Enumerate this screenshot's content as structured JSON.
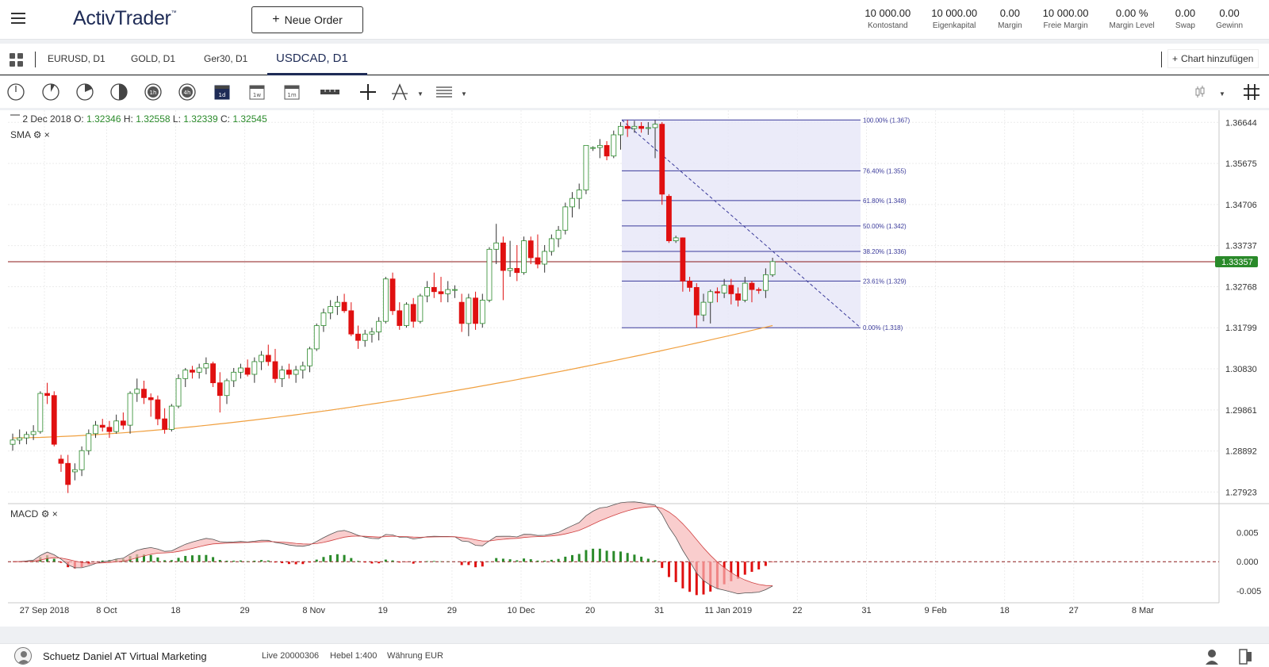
{
  "header": {
    "logo": "ActivTrader",
    "logo_tm": "™",
    "new_order_label": "Neue Order",
    "stats": [
      {
        "value": "10 000.00",
        "label": "Kontostand"
      },
      {
        "value": "10 000.00",
        "label": "Eigenkapital"
      },
      {
        "value": "0.00",
        "label": "Margin"
      },
      {
        "value": "10 000.00",
        "label": "Freie Margin"
      },
      {
        "value": "0.00 %",
        "label": "Margin Level"
      },
      {
        "value": "0.00",
        "label": "Swap"
      },
      {
        "value": "0.00",
        "label": "Gewinn"
      }
    ]
  },
  "tabs": {
    "items": [
      {
        "label": "EURUSD, D1"
      },
      {
        "label": "GOLD, D1"
      },
      {
        "label": "Ger30, D1"
      },
      {
        "label": "USDCAD, D1"
      }
    ],
    "add_chart_label": "Chart hinzufügen"
  },
  "toolbar": {
    "icons": [
      "clock-icon",
      "timeframe-15-icon",
      "timeframe-30-icon",
      "timeframe-half-icon",
      "timeframe-1h-icon",
      "timeframe-4h-icon",
      "calendar-1d-icon",
      "calendar-1w-icon",
      "calendar-1m-icon",
      "ruler-icon",
      "crosshair-icon",
      "drawing-tool-icon",
      "fibonacci-lines-icon"
    ],
    "right_icons": [
      "candle-type-icon",
      "grid-icon"
    ]
  },
  "chart": {
    "ohlc": {
      "date": "2 Dec 2018",
      "open_label": "O:",
      "open": "1.32346",
      "high_label": "H:",
      "high": "1.32558",
      "low_label": "L:",
      "low": "1.32339",
      "close_label": "C:",
      "close": "1.32545"
    },
    "sma_label": "SMA",
    "macd_label": "MACD",
    "current_price": "1.33357",
    "colors": {
      "up": "#2a8a2a",
      "down": "#e01010",
      "sma": "#f0a040",
      "price_line": "#8b1a1a",
      "fib": "#3a3a9a",
      "fib_fill": "#e8e8f8"
    }
  },
  "chart_data": {
    "type": "candlestick",
    "symbol": "USDCAD",
    "timeframe": "D1",
    "y_ticks": [
      "1.36644",
      "1.35675",
      "1.34706",
      "1.33737",
      "1.32768",
      "1.31799",
      "1.30830",
      "1.29861",
      "1.28892",
      "1.27923"
    ],
    "x_ticks": [
      "27 Sep 2018",
      "8 Oct",
      "18",
      "29",
      "8 Nov",
      "19",
      "29",
      "10 Dec",
      "20",
      "31",
      "11 Jan 2019",
      "22",
      "31",
      "9 Feb",
      "18",
      "27",
      "8 Mar"
    ],
    "ylim": [
      1.2765,
      1.3693
    ],
    "fibonacci": [
      {
        "level": "100.00% (1.367)",
        "price": 1.367
      },
      {
        "level": "76.40% (1.355)",
        "price": 1.355
      },
      {
        "level": "61.80% (1.348)",
        "price": 1.348
      },
      {
        "level": "50.00% (1.342)",
        "price": 1.342
      },
      {
        "level": "38.20% (1.336)",
        "price": 1.336
      },
      {
        "level": "23.61% (1.329)",
        "price": 1.329
      },
      {
        "level": "0.00% (1.318)",
        "price": 1.318
      }
    ],
    "macd_ticks": [
      "0.005",
      "0.000",
      "-0.005"
    ],
    "macd_ylim": [
      -0.0068,
      0.0096
    ],
    "candles": [
      [
        1.2905,
        1.293,
        1.289,
        1.2915
      ],
      [
        1.2915,
        1.294,
        1.2905,
        1.292
      ],
      [
        1.292,
        1.2935,
        1.2905,
        1.2928
      ],
      [
        1.2928,
        1.295,
        1.2915,
        1.2935
      ],
      [
        1.2935,
        1.303,
        1.293,
        1.3025
      ],
      [
        1.3025,
        1.305,
        1.3,
        1.302
      ],
      [
        1.302,
        1.303,
        1.29,
        1.2905
      ],
      [
        1.287,
        1.288,
        1.284,
        1.286
      ],
      [
        1.286,
        1.288,
        1.279,
        1.281
      ],
      [
        1.284,
        1.286,
        1.282,
        1.2845
      ],
      [
        1.2845,
        1.29,
        1.283,
        1.289
      ],
      [
        1.289,
        1.294,
        1.288,
        1.293
      ],
      [
        1.293,
        1.296,
        1.292,
        1.295
      ],
      [
        1.295,
        1.2965,
        1.2935,
        1.2945
      ],
      [
        1.2945,
        1.296,
        1.292,
        1.2935
      ],
      [
        1.2935,
        1.2975,
        1.293,
        1.296
      ],
      [
        1.296,
        1.298,
        1.294,
        1.295
      ],
      [
        1.295,
        1.303,
        1.293,
        1.3025
      ],
      [
        1.3025,
        1.306,
        1.3005,
        1.3035
      ],
      [
        1.3035,
        1.3055,
        1.3,
        1.3015
      ],
      [
        1.3015,
        1.3025,
        1.297,
        1.301
      ],
      [
        1.301,
        1.302,
        1.295,
        1.2965
      ],
      [
        1.2965,
        1.299,
        1.293,
        1.294
      ],
      [
        1.294,
        1.3,
        1.2935,
        1.2995
      ],
      [
        1.2995,
        1.307,
        1.299,
        1.306
      ],
      [
        1.306,
        1.3085,
        1.304,
        1.308
      ],
      [
        1.308,
        1.309,
        1.306,
        1.3075
      ],
      [
        1.3075,
        1.3095,
        1.306,
        1.3085
      ],
      [
        1.3085,
        1.311,
        1.307,
        1.3095
      ],
      [
        1.3095,
        1.31,
        1.304,
        1.305
      ],
      [
        1.305,
        1.3075,
        1.298,
        1.302
      ],
      [
        1.302,
        1.306,
        1.3,
        1.3055
      ],
      [
        1.3055,
        1.3085,
        1.304,
        1.3075
      ],
      [
        1.3075,
        1.3095,
        1.306,
        1.3085
      ],
      [
        1.3085,
        1.3105,
        1.3065,
        1.307
      ],
      [
        1.307,
        1.311,
        1.305,
        1.31
      ],
      [
        1.31,
        1.3125,
        1.308,
        1.3115
      ],
      [
        1.3115,
        1.314,
        1.309,
        1.31
      ],
      [
        1.31,
        1.313,
        1.305,
        1.306
      ],
      [
        1.306,
        1.309,
        1.304,
        1.308
      ],
      [
        1.308,
        1.3095,
        1.306,
        1.307
      ],
      [
        1.307,
        1.309,
        1.305,
        1.308
      ],
      [
        1.308,
        1.31,
        1.306,
        1.309
      ],
      [
        1.309,
        1.3135,
        1.3075,
        1.313
      ],
      [
        1.313,
        1.319,
        1.3125,
        1.3185
      ],
      [
        1.3185,
        1.3225,
        1.317,
        1.3215
      ],
      [
        1.3215,
        1.3245,
        1.32,
        1.323
      ],
      [
        1.323,
        1.3255,
        1.321,
        1.324
      ],
      [
        1.324,
        1.326,
        1.3215,
        1.322
      ],
      [
        1.322,
        1.324,
        1.316,
        1.3165
      ],
      [
        1.3165,
        1.3185,
        1.313,
        1.315
      ],
      [
        1.315,
        1.3175,
        1.3135,
        1.3165
      ],
      [
        1.3165,
        1.318,
        1.3145,
        1.317
      ],
      [
        1.317,
        1.3205,
        1.315,
        1.3195
      ],
      [
        1.3195,
        1.33,
        1.319,
        1.3295
      ],
      [
        1.3295,
        1.331,
        1.321,
        1.322
      ],
      [
        1.322,
        1.324,
        1.3175,
        1.3185
      ],
      [
        1.3185,
        1.324,
        1.318,
        1.3235
      ],
      [
        1.3235,
        1.325,
        1.318,
        1.3195
      ],
      [
        1.3195,
        1.326,
        1.319,
        1.3255
      ],
      [
        1.3255,
        1.329,
        1.324,
        1.3275
      ],
      [
        1.3275,
        1.331,
        1.325,
        1.3265
      ],
      [
        1.3265,
        1.33,
        1.324,
        1.326
      ],
      [
        1.326,
        1.329,
        1.324,
        1.327
      ],
      [
        1.327,
        1.328,
        1.325,
        1.327
      ],
      [
        1.324,
        1.326,
        1.317,
        1.319
      ],
      [
        1.319,
        1.326,
        1.316,
        1.325
      ],
      [
        1.325,
        1.3265,
        1.3175,
        1.319
      ],
      [
        1.319,
        1.326,
        1.318,
        1.3245
      ],
      [
        1.3245,
        1.337,
        1.324,
        1.3365
      ],
      [
        1.3365,
        1.3425,
        1.333,
        1.338
      ],
      [
        1.338,
        1.3395,
        1.3245,
        1.3315
      ],
      [
        1.3315,
        1.3385,
        1.33,
        1.332
      ],
      [
        1.332,
        1.3375,
        1.329,
        1.331
      ],
      [
        1.331,
        1.3395,
        1.3305,
        1.3385
      ],
      [
        1.3385,
        1.3395,
        1.333,
        1.3345
      ],
      [
        1.3345,
        1.34,
        1.332,
        1.333
      ],
      [
        1.333,
        1.3375,
        1.331,
        1.336
      ],
      [
        1.336,
        1.34,
        1.335,
        1.339
      ],
      [
        1.339,
        1.342,
        1.337,
        1.341
      ],
      [
        1.341,
        1.3475,
        1.34,
        1.3465
      ],
      [
        1.3465,
        1.35,
        1.344,
        1.3485
      ],
      [
        1.3485,
        1.352,
        1.346,
        1.3505
      ],
      [
        1.3505,
        1.361,
        1.3495,
        1.361
      ],
      [
        1.3603,
        1.3608,
        1.3597,
        1.3605
      ],
      [
        1.3605,
        1.3625,
        1.358,
        1.361
      ],
      [
        1.361,
        1.362,
        1.3575,
        1.3585
      ],
      [
        1.3585,
        1.3645,
        1.358,
        1.3635
      ],
      [
        1.3635,
        1.3665,
        1.36,
        1.3655
      ],
      [
        1.3655,
        1.367,
        1.363,
        1.365
      ],
      [
        1.365,
        1.3668,
        1.364,
        1.3655
      ],
      [
        1.3655,
        1.3665,
        1.364,
        1.365
      ],
      [
        1.365,
        1.3665,
        1.3635,
        1.3652
      ],
      [
        1.3652,
        1.367,
        1.358,
        1.366
      ],
      [
        1.366,
        1.3665,
        1.347,
        1.3495
      ],
      [
        1.349,
        1.3495,
        1.338,
        1.3385
      ],
      [
        1.3385,
        1.3397,
        1.338,
        1.3392
      ],
      [
        1.3392,
        1.3393,
        1.3265,
        1.329
      ],
      [
        1.329,
        1.33,
        1.3265,
        1.3275
      ],
      [
        1.3275,
        1.3285,
        1.318,
        1.321
      ],
      [
        1.321,
        1.326,
        1.3195,
        1.324
      ],
      [
        1.324,
        1.327,
        1.319,
        1.3265
      ],
      [
        1.3265,
        1.3275,
        1.324,
        1.3262
      ],
      [
        1.3262,
        1.3295,
        1.325,
        1.328
      ],
      [
        1.328,
        1.3295,
        1.3235,
        1.326
      ],
      [
        1.326,
        1.3275,
        1.323,
        1.3245
      ],
      [
        1.3245,
        1.33,
        1.324,
        1.3285
      ],
      [
        1.3285,
        1.329,
        1.324,
        1.327
      ],
      [
        1.327,
        1.3275,
        1.326,
        1.3268
      ],
      [
        1.3268,
        1.332,
        1.325,
        1.3305
      ],
      [
        1.3305,
        1.3345,
        1.33,
        1.3336
      ]
    ]
  },
  "footer": {
    "user": "Schuetz Daniel AT Virtual Marketing",
    "account": "Live 20000306",
    "leverage": "Hebel 1:400",
    "currency": "Währung EUR"
  }
}
